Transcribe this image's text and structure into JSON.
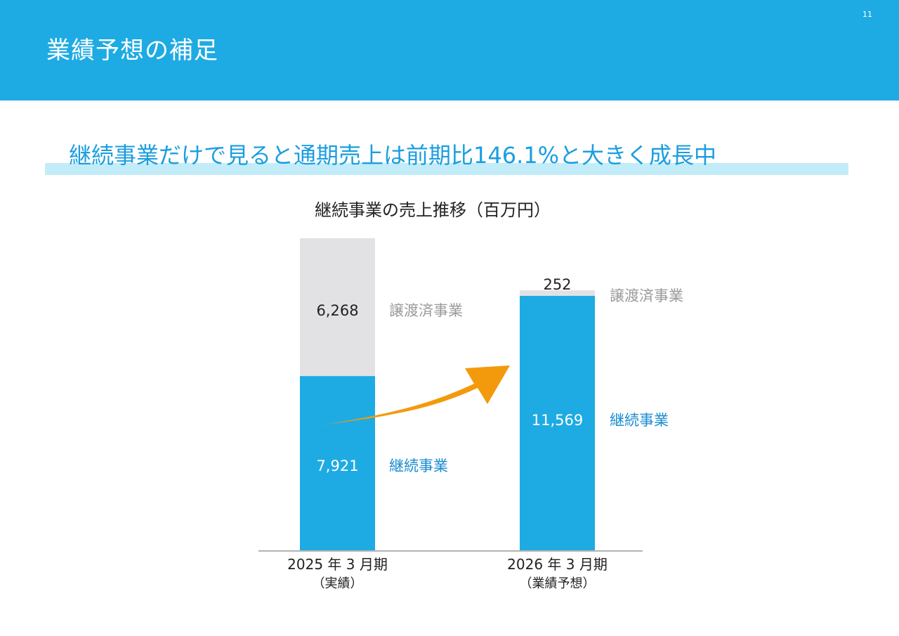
{
  "page": {
    "title": "業績予想の補足",
    "page_number": "11",
    "headline": "継続事業だけで見ると通期売上は前期比146.1%と大きく成長中",
    "chart_title": "継続事業の売上推移（百万円）"
  },
  "colors": {
    "header": "#1eabe3",
    "headline_text": "#1a9ee0",
    "headline_bar": "#c3ecf9",
    "continuing": "#1eabe3",
    "divested": "#e2e2e5",
    "continuing_label": "#1a8bd1",
    "divested_label": "#9a9a9a",
    "arrow": "#f39a0c",
    "axis": "#9a9a9a"
  },
  "chart_data": {
    "type": "bar",
    "stacked": true,
    "title": "継続事業の売上推移（百万円）",
    "categories": [
      {
        "line1": "2025 年 3 月期",
        "line2": "（実績）"
      },
      {
        "line1": "2026 年 3 月期",
        "line2": "（業績予想）"
      }
    ],
    "series": [
      {
        "name": "継続事業",
        "values": [
          7921,
          11569
        ],
        "value_labels": [
          "7,921",
          "11,569"
        ],
        "color": "#1eabe3",
        "label_color": "#1a8bd1"
      },
      {
        "name": "譲渡済事業",
        "values": [
          6268,
          252
        ],
        "value_labels": [
          "6,268",
          "252"
        ],
        "color": "#e2e2e5",
        "label_color": "#9a9a9a"
      }
    ],
    "ylim": [
      0,
      14189
    ],
    "grid": false,
    "legend": "none",
    "annotations": [
      "growth arrow from 2025 continuing bar toward 2026 bar"
    ]
  }
}
